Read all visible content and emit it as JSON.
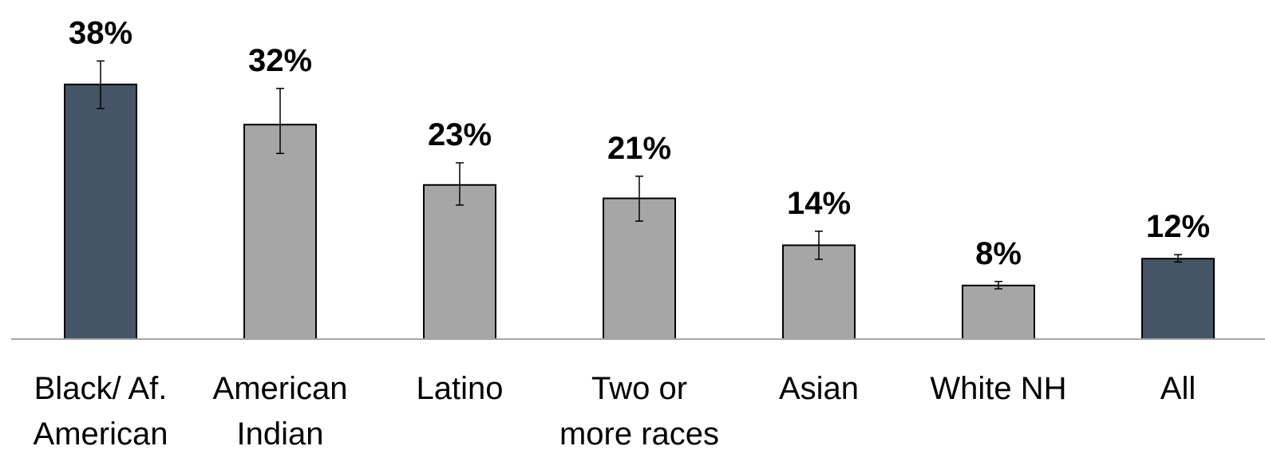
{
  "chart_data": {
    "type": "bar",
    "title": "",
    "xlabel": "",
    "ylabel": "",
    "ylim": [
      0,
      40
    ],
    "grid": false,
    "legend": "none",
    "categories": [
      [
        "Black/ Af.",
        "American"
      ],
      [
        "American",
        "Indian"
      ],
      [
        "Latino"
      ],
      [
        "Two or",
        "more races"
      ],
      [
        "Asian"
      ],
      [
        "White NH"
      ],
      [
        "All"
      ]
    ],
    "values": [
      38,
      32,
      23,
      21,
      14,
      8,
      12
    ],
    "value_labels": [
      "38%",
      "32%",
      "23%",
      "21%",
      "14%",
      "8%",
      "12%"
    ],
    "error_low": [
      34.4,
      27.7,
      20.0,
      17.6,
      11.9,
      7.5,
      11.5
    ],
    "error_high": [
      41.5,
      37.4,
      26.3,
      24.3,
      16.1,
      8.6,
      12.6
    ],
    "colors": [
      "#465468",
      "#a6a6a6",
      "#a6a6a6",
      "#a6a6a6",
      "#a6a6a6",
      "#a6a6a6",
      "#465468"
    ]
  }
}
